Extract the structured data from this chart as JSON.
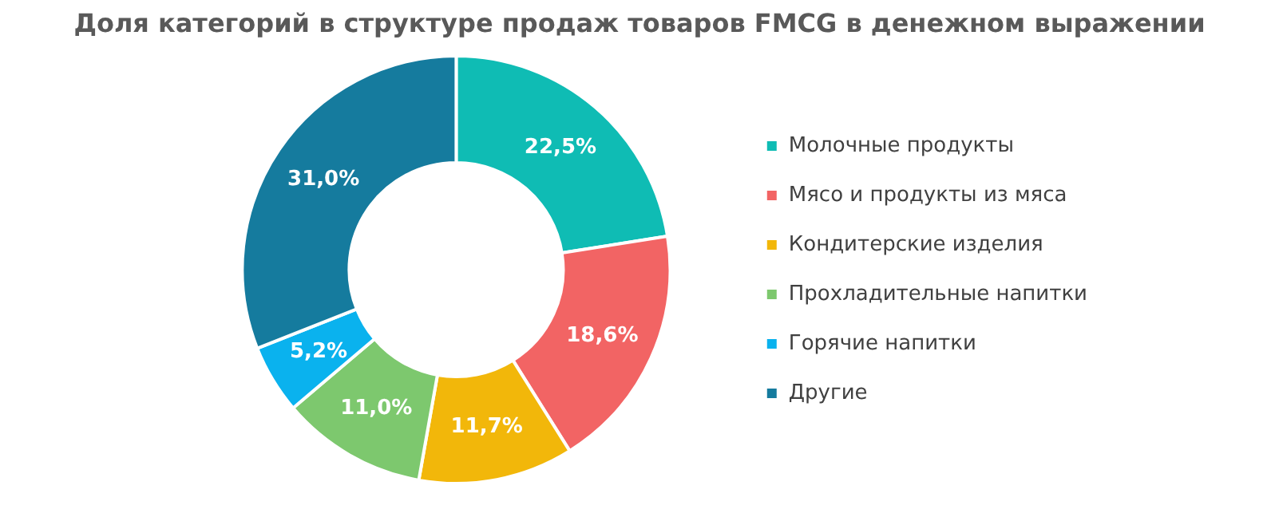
{
  "chart_data": {
    "type": "donut",
    "title": "Доля категорий в структуре продаж товаров FMCG в денежном выражении",
    "categories": [
      "Молочные продукты",
      "Мясо и продукты из мяса",
      "Кондитерские изделия",
      "Прохладительные напитки",
      "Горячие напитки",
      "Другие"
    ],
    "values": [
      22.5,
      18.6,
      11.7,
      11.0,
      5.2,
      31.0
    ],
    "value_labels": [
      "22,5%",
      "18,6%",
      "11,7%",
      "11,0%",
      "5,2%",
      "31,0%"
    ],
    "colors": [
      "#0fbcb4",
      "#f26464",
      "#f2b70a",
      "#7dc86e",
      "#0ab2ee",
      "#157b9e"
    ],
    "legend": "right"
  }
}
